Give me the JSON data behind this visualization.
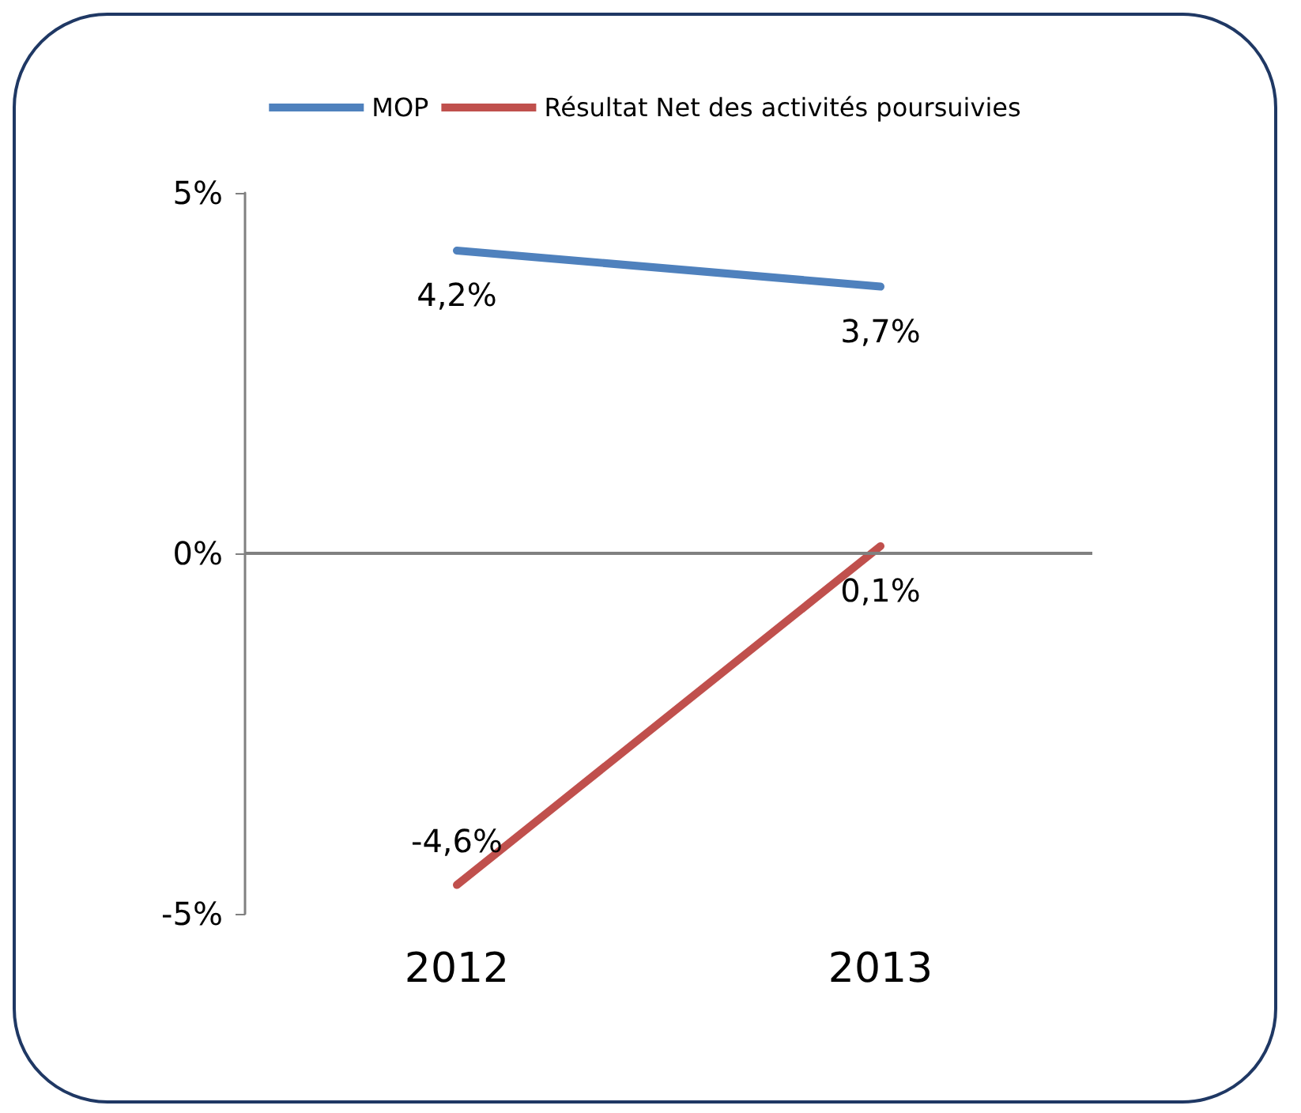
{
  "chart_data": {
    "type": "line",
    "categories": [
      "2012",
      "2013"
    ],
    "series": [
      {
        "name": "MOP",
        "color": "#4f81bd",
        "values": [
          4.2,
          3.7
        ],
        "value_labels": [
          "4,2%",
          "3,7%"
        ]
      },
      {
        "name": "Résultat Net des activités poursuivies",
        "color": "#c0504d",
        "values": [
          -4.6,
          0.1
        ],
        "value_labels": [
          "-4,6%",
          "0,1%"
        ]
      }
    ],
    "ylim": [
      -5,
      5
    ],
    "yticks": [
      {
        "value": -5,
        "label": "-5%"
      },
      {
        "value": 0,
        "label": "0%"
      },
      {
        "value": 5,
        "label": "5%"
      }
    ],
    "ref_lines": [
      {
        "axis": "y",
        "value": 0,
        "color": "#808080"
      }
    ],
    "grid": false,
    "legend": "top",
    "marker": "none",
    "line_style": "solid"
  }
}
